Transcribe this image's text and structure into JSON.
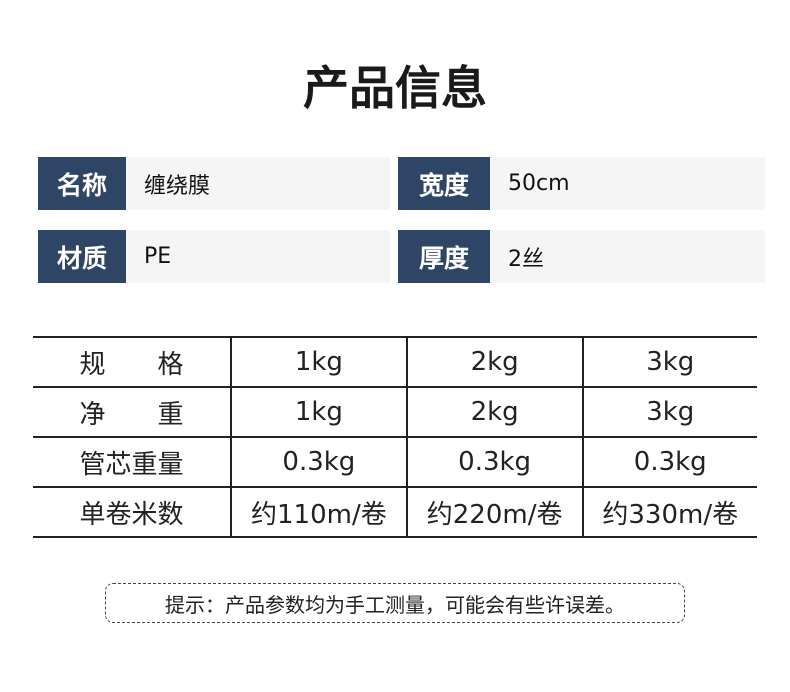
{
  "title": "产品信息",
  "info": [
    {
      "label": "名称",
      "value": "缠绕膜"
    },
    {
      "label": "宽度",
      "value": "50cm"
    },
    {
      "label": "材质",
      "value": "PE"
    },
    {
      "label": "厚度",
      "value": "2丝"
    }
  ],
  "table": {
    "rows": [
      {
        "header": "规　　格",
        "cells": [
          "1kg",
          "2kg",
          "3kg"
        ]
      },
      {
        "header": "净　　重",
        "cells": [
          "1kg",
          "2kg",
          "3kg"
        ]
      },
      {
        "header": "管芯重量",
        "cells": [
          "0.3kg",
          "0.3kg",
          "0.3kg"
        ]
      },
      {
        "header": "单卷米数",
        "cells": [
          "约110m/卷",
          "约220m/卷",
          "约330m/卷"
        ]
      }
    ]
  },
  "note": "提示：产品参数均为手工测量，可能会有些许误差。",
  "colors": {
    "label_bg": "#2f4565",
    "value_bg": "#f5f5f5"
  }
}
